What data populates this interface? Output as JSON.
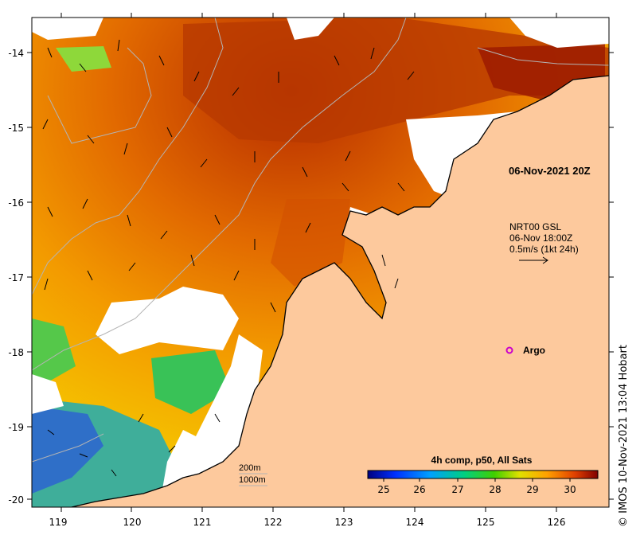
{
  "map": {
    "lon_ticks": [
      "119",
      "120",
      "121",
      "122",
      "123",
      "124",
      "125",
      "126"
    ],
    "lat_ticks": [
      "-14",
      "-15",
      "-16",
      "-17",
      "-18",
      "-19",
      "-20"
    ],
    "date_label": "06-Nov-2021 20Z",
    "current_source": "NRT00 GSL",
    "current_time": "06-Nov 18:00Z",
    "current_scale": "0.5m/s (1kt 24h)",
    "argo_label": "Argo",
    "contour_200": "200m",
    "contour_1000": "1000m",
    "colorbar_title": "4h comp, p50, All Sats",
    "colorbar_ticks": [
      "25",
      "26",
      "27",
      "28",
      "29",
      "30"
    ],
    "credit": "© IMOS 10-Nov-2021 13:04 Hobart",
    "colors": {
      "land": "#fdc99d",
      "no_data": "#ffffff",
      "argo": "#cc00cc",
      "contour": "#b4b4b4"
    }
  }
}
